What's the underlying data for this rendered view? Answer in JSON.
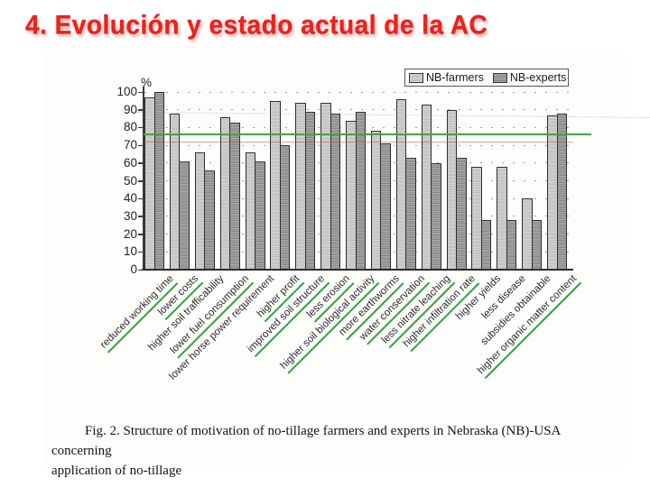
{
  "slide": {
    "title": "4.  Evolución y estado actual de la AC",
    "title_color": "#e8231d"
  },
  "figure": {
    "caption_lines": [
      "Fig. 2. Structure of motivation of no-tillage farmers and experts in Nebraska (NB)-USA concerning",
      "application of no-tillage"
    ]
  },
  "chart_data": {
    "type": "bar",
    "title": "",
    "xlabel": "",
    "ylabel": "%",
    "ylim": [
      0,
      100
    ],
    "yticks": [
      0,
      10,
      20,
      30,
      40,
      50,
      60,
      70,
      80,
      90,
      100
    ],
    "grid": "sparse dotted horizontal lines at every 10%",
    "legend_position": "top-right",
    "legend_labels": [
      "NB-farmers",
      "NB-experts"
    ],
    "reference_lines": [
      {
        "value": 76,
        "color": "#3fa546",
        "style": "solid green horizontal line"
      },
      {
        "value": 72,
        "color": "#c05555",
        "style": "faint red horizontal line"
      }
    ],
    "categories": [
      "reduced working time",
      "lower costs",
      "higher soil trafficability",
      "lower fuel consumption",
      "lower horse power requirement",
      "higher profit",
      "improved soil structure",
      "less erosion",
      "higher soil biological activity",
      "more earthworms",
      "water conservation",
      "less nitrate leaching",
      "higher infiltration rate",
      "higher yields",
      "less disease",
      "subsidies obtainable",
      "higher organic matter content"
    ],
    "green_underlined_categories": [
      "reduced working time",
      "lower costs",
      "lower fuel consumption",
      "higher profit",
      "improved soil structure",
      "less erosion",
      "higher soil biological activity",
      "more earthworms",
      "water conservation",
      "less nitrate leaching",
      "higher infiltration rate",
      "higher organic matter content"
    ],
    "series": [
      {
        "name": "NB-farmers",
        "color": "#cdcdcd",
        "values": [
          97,
          88,
          66,
          86,
          66,
          95,
          94,
          94,
          84,
          78,
          96,
          93,
          90,
          58,
          58,
          40,
          87
        ]
      },
      {
        "name": "NB-experts",
        "color": "#9e9e9e",
        "values": [
          100,
          61,
          56,
          83,
          61,
          70,
          89,
          88,
          89,
          71,
          63,
          60,
          63,
          28,
          28,
          28,
          88
        ]
      }
    ]
  }
}
